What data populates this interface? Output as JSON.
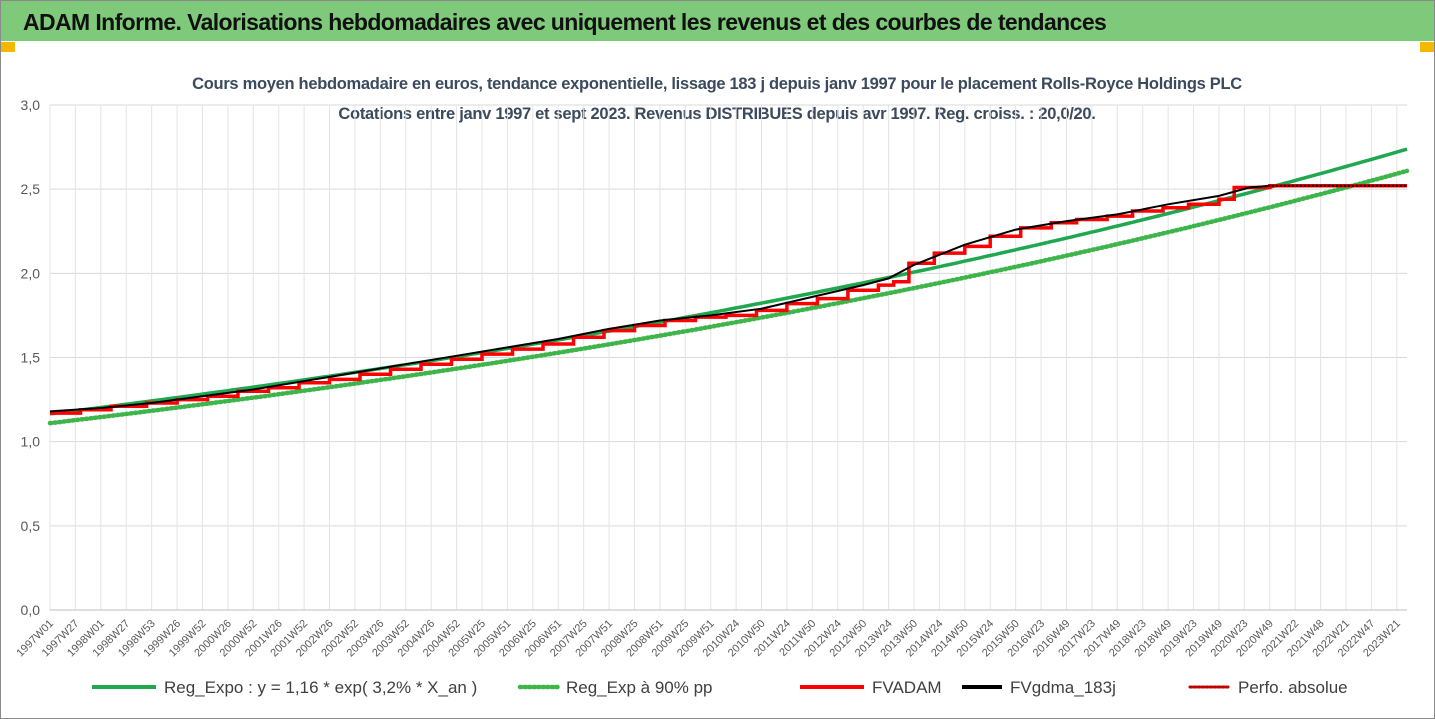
{
  "banner": {
    "title": "ADAM Informe. Valorisations hebdomadaires avec uniquement les revenus et des courbes de tendances"
  },
  "chart_data": {
    "type": "line",
    "title": "Cours moyen hebdomadaire en euros, tendance exponentielle, lissage 183 j depuis janv 1997 pour le placement Rolls-Royce Holdings PLC",
    "subtitle": "Cotations entre janv 1997 et sept 2023. Revenus DISTRIBUES depuis avr 1997. Reg. croiss. : 20,0/20.",
    "ylim": [
      0,
      3
    ],
    "y_ticks": [
      "0,0",
      "0,5",
      "1,0",
      "1,5",
      "2,0",
      "2,5",
      "3,0"
    ],
    "y_tick_values": [
      0,
      0.5,
      1,
      1.5,
      2,
      2.5,
      3
    ],
    "x_ticks": [
      "1997W01",
      "1997W27",
      "1998W01",
      "1998W27",
      "1998W53",
      "1999W26",
      "1999W52",
      "2000W26",
      "2000W52",
      "2001W26",
      "2001W52",
      "2002W26",
      "2002W52",
      "2003W26",
      "2003W52",
      "2004W26",
      "2004W52",
      "2005W25",
      "2005W51",
      "2006W25",
      "2006W51",
      "2007W25",
      "2007W51",
      "2008W25",
      "2008W51",
      "2009W25",
      "2009W51",
      "2010W24",
      "2010W50",
      "2011W24",
      "2011W50",
      "2012W24",
      "2012W50",
      "2013W24",
      "2013W50",
      "2014W24",
      "2014W50",
      "2015W24",
      "2015W50",
      "2016W23",
      "2016W49",
      "2017W23",
      "2017W49",
      "2018W23",
      "2018W49",
      "2019W23",
      "2019W49",
      "2020W23",
      "2020W49",
      "2021W22",
      "2021W48",
      "2022W21",
      "2022W47",
      "2023W21"
    ],
    "x_range_years": [
      1997.0,
      2023.7
    ],
    "grid": true,
    "legend_position": "bottom",
    "colors": {
      "reg_expo": "#1fa84f",
      "reg_90": "#3db54a",
      "fvadam": "#ff0000",
      "fvgdma": "#000000",
      "perfo": "#c00000"
    },
    "series": [
      {
        "name": "Reg_Expo : y = 1,16 * exp( 3,2% * X_an )",
        "kind": "expo",
        "a": 1.165,
        "rate": 0.032,
        "x0": 1997.0
      },
      {
        "name": "Reg_Exp à 90% pp",
        "kind": "expo",
        "a": 1.11,
        "rate": 0.032,
        "x0": 1997.0
      },
      {
        "name": "FVADAM",
        "kind": "steps",
        "points": [
          [
            1997.0,
            1.17
          ],
          [
            1997.6,
            1.19
          ],
          [
            1998.2,
            1.21
          ],
          [
            1998.9,
            1.23
          ],
          [
            1999.5,
            1.25
          ],
          [
            2000.1,
            1.27
          ],
          [
            2000.7,
            1.3
          ],
          [
            2001.3,
            1.32
          ],
          [
            2001.9,
            1.35
          ],
          [
            2002.5,
            1.37
          ],
          [
            2003.1,
            1.4
          ],
          [
            2003.7,
            1.43
          ],
          [
            2004.3,
            1.46
          ],
          [
            2004.9,
            1.49
          ],
          [
            2005.5,
            1.52
          ],
          [
            2006.1,
            1.55
          ],
          [
            2006.7,
            1.58
          ],
          [
            2007.3,
            1.62
          ],
          [
            2007.9,
            1.66
          ],
          [
            2008.5,
            1.69
          ],
          [
            2009.1,
            1.72
          ],
          [
            2009.7,
            1.74
          ],
          [
            2010.3,
            1.75
          ],
          [
            2010.9,
            1.78
          ],
          [
            2011.5,
            1.82
          ],
          [
            2012.1,
            1.85
          ],
          [
            2012.7,
            1.9
          ],
          [
            2013.3,
            1.93
          ],
          [
            2013.6,
            1.95
          ],
          [
            2013.9,
            2.06
          ],
          [
            2014.4,
            2.12
          ],
          [
            2015.0,
            2.16
          ],
          [
            2015.5,
            2.22
          ],
          [
            2016.1,
            2.27
          ],
          [
            2016.7,
            2.3
          ],
          [
            2017.2,
            2.32
          ],
          [
            2017.8,
            2.34
          ],
          [
            2018.3,
            2.37
          ],
          [
            2018.9,
            2.39
          ],
          [
            2019.4,
            2.41
          ],
          [
            2020.0,
            2.44
          ],
          [
            2020.3,
            2.51
          ],
          [
            2021.0,
            2.52
          ],
          [
            2023.7,
            2.52
          ]
        ]
      },
      {
        "name": "FVgdma_183j",
        "kind": "line",
        "points": [
          [
            1997.0,
            1.18
          ],
          [
            1998.0,
            1.2
          ],
          [
            1999.0,
            1.23
          ],
          [
            2000.0,
            1.27
          ],
          [
            2001.0,
            1.31
          ],
          [
            2002.0,
            1.36
          ],
          [
            2003.0,
            1.41
          ],
          [
            2004.0,
            1.46
          ],
          [
            2005.0,
            1.51
          ],
          [
            2006.0,
            1.56
          ],
          [
            2007.0,
            1.61
          ],
          [
            2008.0,
            1.67
          ],
          [
            2009.0,
            1.72
          ],
          [
            2010.0,
            1.75
          ],
          [
            2011.0,
            1.79
          ],
          [
            2012.0,
            1.86
          ],
          [
            2013.0,
            1.93
          ],
          [
            2013.5,
            1.97
          ],
          [
            2014.0,
            2.05
          ],
          [
            2015.0,
            2.17
          ],
          [
            2016.0,
            2.26
          ],
          [
            2017.0,
            2.31
          ],
          [
            2018.0,
            2.35
          ],
          [
            2019.0,
            2.41
          ],
          [
            2020.0,
            2.46
          ],
          [
            2020.6,
            2.51
          ],
          [
            2021.0,
            2.52
          ],
          [
            2023.7,
            2.52
          ]
        ]
      },
      {
        "name": "Perfo. absolue",
        "kind": "dotted",
        "points": [
          [
            2021.0,
            2.52
          ],
          [
            2023.7,
            2.52
          ]
        ]
      }
    ]
  }
}
